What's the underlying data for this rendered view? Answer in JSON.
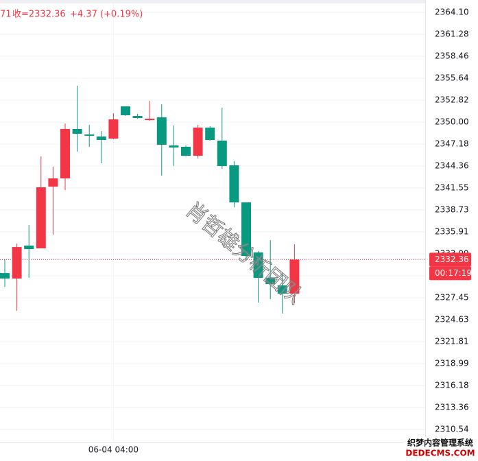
{
  "chart_data": {
    "type": "candlestick",
    "header": {
      "prefix": "71",
      "close_label": "收=2332.36",
      "change": "+4.37 (+0.19%)"
    },
    "categories": [
      null,
      null,
      null,
      null,
      null,
      null,
      null,
      null,
      null,
      "06-04 04:00",
      null,
      null,
      null,
      null,
      null,
      null,
      null,
      null,
      null,
      null,
      null,
      null,
      null,
      null,
      null
    ],
    "series": [
      {
        "open": [
          2330.62,
          2329.92,
          2334.15,
          2333.8,
          2341.73,
          2342.78,
          2349.13,
          2348.42,
          2348.16,
          2347.89,
          2352.03,
          2350.8,
          2350.27,
          2350.62,
          2347.01,
          2346.84,
          2345.69,
          2349.3,
          2347.63,
          2344.46,
          2339.7,
          2333.27,
          2330.01,
          2329.04,
          2327.98
        ],
        "high": [
          2332.39,
          2334.41,
          2336.79,
          2345.6,
          2344.28,
          2349.83,
          2354.68,
          2349.66,
          2348.86,
          2351.15,
          2352.03,
          2351.07,
          2352.74,
          2352.3,
          2349.57,
          2347.01,
          2349.66,
          2349.48,
          2351.86,
          2344.99,
          2339.7,
          2333.44,
          2334.85,
          2330.71,
          2334.32
        ],
        "low": [
          2328.86,
          2325.78,
          2330.01,
          2333.8,
          2335.56,
          2341.29,
          2346.22,
          2346.84,
          2344.72,
          2347.8,
          2350.8,
          2350.45,
          2350.18,
          2343.13,
          2344.37,
          2345.6,
          2345.34,
          2347.63,
          2344.02,
          2339.08,
          2332.21,
          2326.84,
          2327.28,
          2325.43,
          2326.75
        ],
        "close": [
          2329.92,
          2333.97,
          2333.71,
          2341.64,
          2342.78,
          2349.13,
          2348.51,
          2348.25,
          2347.72,
          2350.36,
          2350.89,
          2350.54,
          2350.45,
          2347.1,
          2346.75,
          2345.69,
          2349.3,
          2347.72,
          2344.37,
          2339.7,
          2332.83,
          2330.01,
          2329.21,
          2327.98,
          2332.36
        ]
      }
    ],
    "up_color": "#f23645",
    "down_color": "#089981",
    "ylim": [
      2308.87,
      2365.69
    ],
    "yticks": [
      {
        "value": 2364.1,
        "label": "2364.10"
      },
      2361.28,
      2358.46,
      2355.64,
      2352.82,
      {
        "value": 2350,
        "label": "2350.00"
      },
      2347.18,
      2344.36,
      2341.55,
      2338.73,
      2335.91,
      2333.09,
      2330.27,
      2327.45,
      2324.63,
      2321.81,
      2318.99,
      2316.18,
      2313.36,
      2310.54
    ],
    "grid": true,
    "last_price": 2332.36,
    "countdown": "00:17:19",
    "watermark": "肖哲雄分析团队",
    "site_mark": {
      "line1": "织梦内容管理系统",
      "line2": "DEDECMS.COM"
    }
  }
}
